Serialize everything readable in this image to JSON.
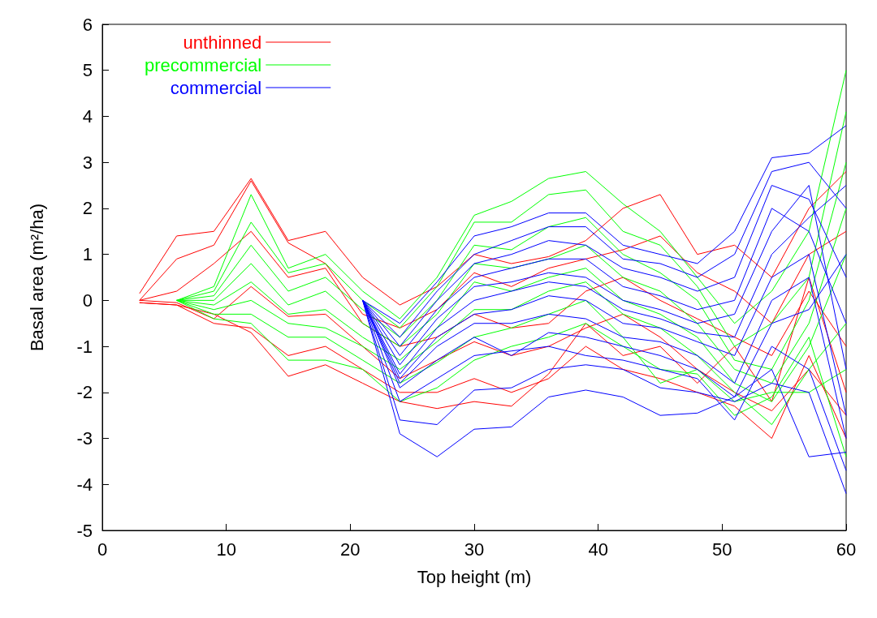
{
  "chart_data": {
    "type": "line",
    "xlabel": "Top height (m)",
    "ylabel": "Basal area (m²/ha)",
    "xlim": [
      0,
      60
    ],
    "xticks": [
      0,
      10,
      20,
      30,
      40,
      50,
      60
    ],
    "ylim": [
      -5,
      6
    ],
    "yticks": [
      -5,
      -4,
      -3,
      -2,
      -1,
      0,
      1,
      2,
      3,
      4,
      5,
      6
    ],
    "grid": false,
    "legend": "top left",
    "marker": "none",
    "line_style": "solid",
    "series": [
      {
        "name": "unthinned",
        "color": "#ff0000",
        "x": [
          3,
          6,
          9,
          12,
          15,
          18,
          21,
          24,
          27,
          30,
          33,
          36,
          39,
          42,
          45,
          48,
          51,
          54,
          57,
          60
        ],
        "values": [
          0.15,
          1.4,
          1.5,
          2.65,
          1.3,
          1.5,
          0.5,
          -0.1,
          0.3,
          1.0,
          0.8,
          0.95,
          1.3,
          2.0,
          2.3,
          1.0,
          1.2,
          0.5,
          2.0,
          2.8
        ]
      },
      {
        "color": "#ff0000",
        "x": [
          3,
          6,
          9,
          12,
          15,
          18,
          21,
          24,
          27,
          30,
          33,
          36,
          39,
          42,
          45,
          48,
          51,
          54,
          57,
          60
        ],
        "values": [
          0,
          0.9,
          1.2,
          2.6,
          1.25,
          0.8,
          -0.3,
          -0.6,
          -0.2,
          0.6,
          0.3,
          0.7,
          0.9,
          1.1,
          1.4,
          0.6,
          0.2,
          -0.5,
          1.0,
          1.5
        ]
      },
      {
        "color": "#ff0000",
        "x": [
          3,
          6,
          9,
          12,
          15,
          18,
          21,
          24,
          27,
          30,
          33,
          36,
          39,
          42,
          45,
          48,
          51,
          54,
          57,
          60
        ],
        "values": [
          0,
          0.2,
          0.8,
          1.5,
          0.5,
          0.7,
          -0.5,
          -1.0,
          -0.8,
          -0.3,
          -0.6,
          -0.5,
          0.2,
          0.5,
          0.0,
          -0.4,
          -0.8,
          -1.2,
          0.2,
          -1.0
        ]
      },
      {
        "color": "#ff0000",
        "x": [
          3,
          6,
          9,
          12,
          15,
          18,
          21,
          24,
          27,
          30,
          33,
          36,
          39,
          42,
          45,
          48,
          51,
          54,
          57,
          60
        ],
        "values": [
          0,
          -0.05,
          -0.4,
          0.3,
          -0.35,
          -0.3,
          -1.0,
          -1.7,
          -1.3,
          -0.9,
          -1.2,
          -1.0,
          -0.6,
          -0.3,
          -0.8,
          -1.5,
          -2.0,
          -2.4,
          -1.5,
          -2.5
        ]
      },
      {
        "color": "#ff0000",
        "x": [
          3,
          6,
          9,
          12,
          15,
          18,
          21,
          24,
          27,
          30,
          33,
          36,
          39,
          42,
          45,
          48,
          51,
          54,
          57,
          60
        ],
        "values": [
          -0.05,
          -0.1,
          -0.5,
          -0.6,
          -1.2,
          -1.0,
          -1.5,
          -2.0,
          -2.0,
          -1.7,
          -2.0,
          -1.7,
          -1.0,
          -1.5,
          -1.7,
          -2.0,
          -2.3,
          -3.0,
          -1.2,
          -3.0
        ]
      },
      {
        "color": "#ff0000",
        "x": [
          3,
          6,
          9,
          12,
          15,
          18,
          21,
          24,
          27,
          30,
          33,
          36,
          39,
          42,
          45,
          48,
          51,
          54,
          57,
          60
        ],
        "values": [
          -0.05,
          -0.1,
          -0.3,
          -0.7,
          -1.65,
          -1.4,
          -1.8,
          -2.2,
          -2.35,
          -2.2,
          -2.3,
          -1.6,
          -0.5,
          -1.2,
          -1.0,
          -1.8,
          -1.0,
          -2.2,
          0.5,
          -2.0
        ]
      },
      {
        "name": "precommercial",
        "color": "#00ff00",
        "x": [
          6,
          9,
          12,
          15,
          18,
          21,
          24,
          27,
          30,
          33,
          36,
          39,
          42,
          45,
          48,
          51,
          54,
          57,
          60
        ],
        "values": [
          0,
          0.3,
          2.3,
          0.7,
          1.0,
          0.2,
          -0.4,
          0.5,
          1.85,
          2.15,
          2.65,
          2.8,
          2.1,
          1.5,
          0.5,
          -0.5,
          0.2,
          1.5,
          5.0
        ]
      },
      {
        "color": "#00ff00",
        "x": [
          6,
          9,
          12,
          15,
          18,
          21,
          24,
          27,
          30,
          33,
          36,
          39,
          42,
          45,
          48,
          51,
          54,
          57,
          60
        ],
        "values": [
          0,
          0.2,
          1.7,
          0.6,
          0.8,
          0.0,
          -0.6,
          0.3,
          1.7,
          1.7,
          2.3,
          2.4,
          1.5,
          1.2,
          0.3,
          -1.0,
          -0.5,
          0.5,
          4.1
        ]
      },
      {
        "color": "#00ff00",
        "x": [
          6,
          9,
          12,
          15,
          18,
          21,
          24,
          27,
          30,
          33,
          36,
          39,
          42,
          45,
          48,
          51,
          54,
          57,
          60
        ],
        "values": [
          0,
          0.1,
          1.2,
          0.2,
          0.5,
          -0.2,
          -0.8,
          0.0,
          1.2,
          1.1,
          1.6,
          1.8,
          1.0,
          0.6,
          0.0,
          -1.3,
          -1.5,
          0.0,
          3.0
        ]
      },
      {
        "color": "#00ff00",
        "x": [
          6,
          9,
          12,
          15,
          18,
          21,
          24,
          27,
          30,
          33,
          36,
          39,
          42,
          45,
          48,
          51,
          54,
          57,
          60
        ],
        "values": [
          0,
          0.0,
          0.8,
          -0.1,
          0.2,
          -0.5,
          -1.0,
          -0.3,
          0.8,
          0.7,
          0.9,
          1.2,
          0.5,
          0.2,
          -0.5,
          -1.5,
          -1.8,
          -0.5,
          2.0
        ]
      },
      {
        "color": "#00ff00",
        "x": [
          6,
          9,
          12,
          15,
          18,
          21,
          24,
          27,
          30,
          33,
          36,
          39,
          42,
          45,
          48,
          51,
          54,
          57,
          60
        ],
        "values": [
          0,
          -0.1,
          0.4,
          -0.3,
          -0.2,
          -0.8,
          -1.3,
          -0.6,
          0.4,
          0.2,
          0.5,
          0.7,
          0.0,
          -0.3,
          -0.8,
          -1.8,
          -2.2,
          -1.0,
          1.0
        ]
      },
      {
        "color": "#00ff00",
        "x": [
          6,
          9,
          12,
          15,
          18,
          21,
          24,
          27,
          30,
          33,
          36,
          39,
          42,
          45,
          48,
          51,
          54,
          57,
          60
        ],
        "values": [
          0,
          -0.2,
          0.0,
          -0.5,
          -0.6,
          -1.0,
          -1.5,
          -0.9,
          -0.2,
          -0.2,
          0.2,
          0.4,
          -0.3,
          -0.6,
          -1.2,
          -2.0,
          -2.7,
          -1.5,
          -0.5
        ]
      },
      {
        "color": "#00ff00",
        "x": [
          6,
          9,
          12,
          15,
          18,
          21,
          24,
          27,
          30,
          33,
          36,
          39,
          42,
          45,
          48,
          51,
          54,
          57,
          60
        ],
        "values": [
          0,
          -0.3,
          -0.3,
          -0.8,
          -0.8,
          -1.3,
          -1.8,
          -1.35,
          -0.8,
          -0.6,
          -0.3,
          0.0,
          -0.8,
          -1.8,
          -1.5,
          -2.2,
          -2.0,
          -2.0,
          -1.5
        ]
      },
      {
        "color": "#00ff00",
        "x": [
          6,
          9,
          12,
          15,
          18,
          21,
          24,
          27,
          30,
          33,
          36,
          39,
          42,
          45,
          48,
          51,
          54,
          57,
          60
        ],
        "values": [
          0,
          -0.4,
          -0.5,
          -1.3,
          -1.3,
          -1.5,
          -2.2,
          -1.9,
          -1.3,
          -1.0,
          -0.8,
          -0.5,
          -1.0,
          -1.5,
          -1.6,
          -2.5,
          -2.1,
          -0.8,
          -3.4
        ]
      },
      {
        "name": "commercial",
        "color": "#0000ff",
        "x": [
          21,
          24,
          27,
          30,
          33,
          36,
          39,
          42,
          45,
          48,
          51,
          54,
          57,
          60
        ],
        "values": [
          0,
          -0.5,
          0.4,
          1.4,
          1.6,
          1.9,
          1.9,
          1.2,
          1.0,
          0.8,
          1.5,
          3.1,
          3.2,
          3.8
        ]
      },
      {
        "color": "#0000ff",
        "x": [
          21,
          24,
          27,
          30,
          33,
          36,
          39,
          42,
          45,
          48,
          51,
          54,
          57,
          60
        ],
        "values": [
          0,
          -0.8,
          0.2,
          1.0,
          1.3,
          1.6,
          1.6,
          0.9,
          0.8,
          0.5,
          1.0,
          2.8,
          3.0,
          2.0
        ]
      },
      {
        "color": "#0000ff",
        "x": [
          21,
          24,
          27,
          30,
          33,
          36,
          39,
          42,
          45,
          48,
          51,
          54,
          57,
          60
        ],
        "values": [
          0,
          -1.0,
          0.0,
          0.8,
          1.0,
          1.3,
          1.2,
          0.7,
          0.5,
          0.2,
          0.5,
          2.5,
          2.2,
          0.5
        ]
      },
      {
        "color": "#0000ff",
        "x": [
          21,
          24,
          27,
          30,
          33,
          36,
          39,
          42,
          45,
          48,
          51,
          54,
          57,
          60
        ],
        "values": [
          0,
          -1.2,
          -0.2,
          0.5,
          0.7,
          0.9,
          0.9,
          0.3,
          0.1,
          -0.2,
          0.0,
          2.0,
          1.5,
          -0.5
        ]
      },
      {
        "color": "#0000ff",
        "x": [
          21,
          24,
          27,
          30,
          33,
          36,
          39,
          42,
          45,
          48,
          51,
          54,
          57,
          60
        ],
        "values": [
          0,
          -1.4,
          -0.4,
          0.3,
          0.4,
          0.6,
          0.5,
          0.0,
          -0.2,
          -0.5,
          -0.3,
          1.5,
          2.5,
          -1.5
        ]
      },
      {
        "color": "#0000ff",
        "x": [
          21,
          24,
          27,
          30,
          33,
          36,
          39,
          42,
          45,
          48,
          51,
          54,
          57,
          60
        ],
        "values": [
          0,
          -1.6,
          -0.6,
          0.0,
          0.2,
          0.4,
          0.3,
          -0.2,
          -0.4,
          -0.7,
          -0.8,
          1.0,
          1.8,
          2.5
        ]
      },
      {
        "color": "#0000ff",
        "x": [
          21,
          24,
          27,
          30,
          33,
          36,
          39,
          42,
          45,
          48,
          51,
          54,
          57,
          60
        ],
        "values": [
          0,
          -1.7,
          -0.8,
          -0.3,
          -0.2,
          0.1,
          0.0,
          -0.5,
          -0.6,
          -0.9,
          -1.2,
          0.5,
          1.0,
          -2.5
        ]
      },
      {
        "color": "#0000ff",
        "x": [
          21,
          24,
          27,
          30,
          33,
          36,
          39,
          42,
          45,
          48,
          51,
          54,
          57,
          60
        ],
        "values": [
          0,
          -1.8,
          -1.0,
          -0.5,
          -0.5,
          -0.3,
          -0.4,
          -0.8,
          -0.9,
          -1.2,
          -1.8,
          0.0,
          0.5,
          -3.0
        ]
      },
      {
        "color": "#0000ff",
        "x": [
          21,
          24,
          27,
          30,
          33,
          36,
          39,
          42,
          45,
          48,
          51,
          54,
          57,
          60
        ],
        "values": [
          0,
          -1.9,
          -1.3,
          -0.8,
          -1.2,
          -0.7,
          -0.8,
          -1.0,
          -1.2,
          -1.5,
          -2.1,
          -0.5,
          -0.2,
          1.0
        ]
      },
      {
        "color": "#0000ff",
        "x": [
          21,
          24,
          27,
          30,
          33,
          36,
          39,
          42,
          45,
          48,
          51,
          54,
          57,
          60
        ],
        "values": [
          0,
          -2.2,
          -1.7,
          -1.2,
          -1.1,
          -1.0,
          -1.2,
          -1.3,
          -1.5,
          -1.7,
          -2.6,
          -1.0,
          -1.5,
          -3.7
        ]
      },
      {
        "color": "#0000ff",
        "x": [
          21,
          24,
          27,
          30,
          33,
          36,
          39,
          42,
          45,
          48,
          51,
          54,
          57,
          60
        ],
        "values": [
          0,
          -2.6,
          -2.7,
          -1.95,
          -1.9,
          -1.5,
          -1.4,
          -1.5,
          -1.9,
          -2.0,
          -2.2,
          -1.8,
          -2.0,
          -4.2
        ]
      },
      {
        "color": "#0000ff",
        "x": [
          21,
          24,
          27,
          30,
          33,
          36,
          39,
          42,
          45,
          48,
          51,
          54,
          57,
          60
        ],
        "values": [
          0,
          -2.9,
          -3.4,
          -2.8,
          -2.75,
          -2.1,
          -1.95,
          -2.1,
          -2.5,
          -2.45,
          -2.1,
          -1.5,
          -3.4,
          -3.3
        ]
      }
    ]
  }
}
